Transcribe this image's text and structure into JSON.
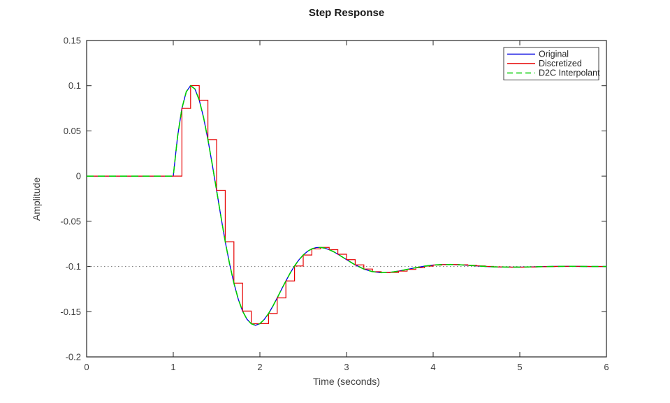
{
  "figure": {
    "title": "Step Response",
    "background": "#ffffff",
    "axis_color": "#262626",
    "text_color": "#404040"
  },
  "chart_data": {
    "type": "line",
    "title": "Step Response",
    "xlabel": "Time (seconds)",
    "ylabel": "Amplitude",
    "xlim": [
      0,
      6
    ],
    "ylim": [
      -0.2,
      0.15
    ],
    "xticks": [
      0,
      1,
      2,
      3,
      4,
      5,
      6
    ],
    "xtick_labels": [
      "0",
      "1",
      "2",
      "3",
      "4",
      "5",
      "6"
    ],
    "yticks": [
      0.15,
      0.1,
      0.05,
      0,
      -0.05,
      -0.1,
      -0.15,
      -0.2
    ],
    "ytick_labels": [
      "0.15",
      "0.1",
      "0.05",
      "0",
      "-0.05",
      "-0.1",
      "-0.15",
      "-0.2"
    ],
    "grid": false,
    "box": true,
    "legend_position": "northeast",
    "reference_line": {
      "y": -0.1,
      "style": "dotted",
      "color": "#737373"
    },
    "series": [
      {
        "name": "Original",
        "type": "line",
        "dash": "solid",
        "color": "#0000e0",
        "points": [
          [
            0,
            0
          ],
          [
            1,
            0
          ],
          [
            1.05,
            0.044
          ],
          [
            1.1,
            0.0749
          ],
          [
            1.15,
            0.0933
          ],
          [
            1.2,
            0.1001
          ],
          [
            1.25,
            0.0964
          ],
          [
            1.3,
            0.084
          ],
          [
            1.35,
            0.0647
          ],
          [
            1.4,
            0.0404
          ],
          [
            1.45,
            0.013
          ],
          [
            1.5,
            -0.0157
          ],
          [
            1.55,
            -0.0447
          ],
          [
            1.6,
            -0.0726
          ],
          [
            1.65,
            -0.097
          ],
          [
            1.7,
            -0.1184
          ],
          [
            1.75,
            -0.136
          ],
          [
            1.8,
            -0.1493
          ],
          [
            1.85,
            -0.1582
          ],
          [
            1.9,
            -0.1633
          ],
          [
            1.95,
            -0.165
          ],
          [
            2,
            -0.1632
          ],
          [
            2.05,
            -0.1586
          ],
          [
            2.1,
            -0.152
          ],
          [
            2.15,
            -0.1438
          ],
          [
            2.2,
            -0.1347
          ],
          [
            2.25,
            -0.1252
          ],
          [
            2.3,
            -0.116
          ],
          [
            2.35,
            -0.1072
          ],
          [
            2.4,
            -0.0994
          ],
          [
            2.45,
            -0.0927
          ],
          [
            2.5,
            -0.0873
          ],
          [
            2.55,
            -0.0832
          ],
          [
            2.6,
            -0.0805
          ],
          [
            2.65,
            -0.0791
          ],
          [
            2.7,
            -0.0789
          ],
          [
            2.75,
            -0.0797
          ],
          [
            2.8,
            -0.0814
          ],
          [
            2.85,
            -0.0836
          ],
          [
            2.9,
            -0.0864
          ],
          [
            2.95,
            -0.0894
          ],
          [
            3,
            -0.0924
          ],
          [
            3.1,
            -0.0982
          ],
          [
            3.2,
            -0.1028
          ],
          [
            3.3,
            -0.1057
          ],
          [
            3.4,
            -0.1068
          ],
          [
            3.5,
            -0.1065
          ],
          [
            3.6,
            -0.1051
          ],
          [
            3.7,
            -0.1032
          ],
          [
            3.8,
            -0.1013
          ],
          [
            3.9,
            -0.0996
          ],
          [
            4,
            -0.0984
          ],
          [
            4.1,
            -0.0979
          ],
          [
            4.2,
            -0.0978
          ],
          [
            4.3,
            -0.0981
          ],
          [
            4.4,
            -0.0987
          ],
          [
            4.5,
            -0.0993
          ],
          [
            4.6,
            -0.0999
          ],
          [
            4.7,
            -0.1004
          ],
          [
            4.8,
            -0.1006
          ],
          [
            4.9,
            -0.1007
          ],
          [
            5,
            -0.1007
          ],
          [
            5.2,
            -0.1003
          ],
          [
            5.4,
            -0.0999
          ],
          [
            5.6,
            -0.0998
          ],
          [
            5.8,
            -0.1
          ],
          [
            6,
            -0.1
          ]
        ]
      },
      {
        "name": "Discretized",
        "type": "stairs",
        "dash": "solid",
        "color": "#e60000",
        "t0": 0,
        "sample_time": 0.1,
        "samples": [
          0,
          0,
          0,
          0,
          0,
          0,
          0,
          0,
          0,
          0,
          0,
          0.0749,
          0.1001,
          0.084,
          0.0404,
          -0.0157,
          -0.0726,
          -0.1184,
          -0.1493,
          -0.1633,
          -0.1632,
          -0.152,
          -0.1347,
          -0.116,
          -0.0994,
          -0.0873,
          -0.0805,
          -0.0789,
          -0.0814,
          -0.0864,
          -0.0924,
          -0.0982,
          -0.1028,
          -0.1057,
          -0.1068,
          -0.1065,
          -0.1051,
          -0.1032,
          -0.1013,
          -0.0996,
          -0.0984,
          -0.0979,
          -0.0978,
          -0.0981,
          -0.0987,
          -0.0993,
          -0.0999,
          -0.1004,
          -0.1006,
          -0.1007,
          -0.1007,
          -0.1005,
          -0.1003,
          -0.1001,
          -0.0999,
          -0.0998,
          -0.0998,
          -0.0999,
          -0.1,
          -0.1,
          -0.1
        ]
      },
      {
        "name": "D2C Interpolant",
        "type": "line",
        "dash": "dashed",
        "color": "#00cc00",
        "points_same_as_series": 0
      }
    ]
  }
}
